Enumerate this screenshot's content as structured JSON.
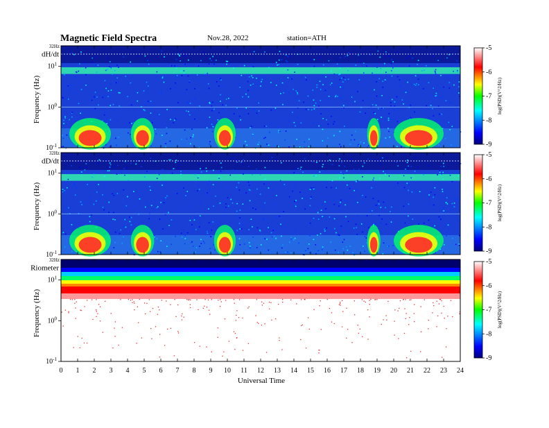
{
  "header": {
    "title": "Magnetic  Field  Spectra",
    "date": "Nov.28, 2022",
    "station": "station=ATH"
  },
  "colors": {
    "scale": [
      "#00007f",
      "#0000ff",
      "#00ffff",
      "#00ff00",
      "#ffff00",
      "#ff0000",
      "#ffffff"
    ]
  },
  "chart_data": [
    {
      "type": "heatmap",
      "panel_label": "dH/dt",
      "ylabel": "Frequency  (Hz)",
      "ytop_label": "32Hz",
      "y_ticks": [
        {
          "base": "10",
          "exp": "1",
          "value": 10
        },
        {
          "base": "10",
          "exp": "0",
          "value": 1
        },
        {
          "base": "10",
          "exp": "-1",
          "value": 0.1
        }
      ],
      "ylim": [
        0.1,
        32
      ],
      "y_scale": "log",
      "xlim": [
        0,
        24
      ],
      "colorbar": {
        "label": "log(PSD)(V^2/Hz)",
        "ticks": [
          "-5",
          "-6",
          "-7",
          "-8",
          "-9"
        ],
        "range": [
          -9,
          -5
        ]
      },
      "low_freq_activity_hours": [
        [
          0.5,
          3
        ],
        [
          4.2,
          5.6
        ],
        [
          9.2,
          10.5
        ],
        [
          18.4,
          19.2
        ],
        [
          20,
          23
        ]
      ]
    },
    {
      "type": "heatmap",
      "panel_label": "dD/dt",
      "ylabel": "Frequency  (Hz)",
      "ytop_label": "32Hz",
      "y_ticks": [
        {
          "base": "10",
          "exp": "1",
          "value": 10
        },
        {
          "base": "10",
          "exp": "0",
          "value": 1
        },
        {
          "base": "10",
          "exp": "-1",
          "value": 0.1
        }
      ],
      "ylim": [
        0.1,
        32
      ],
      "y_scale": "log",
      "xlim": [
        0,
        24
      ],
      "colorbar": {
        "label": "log(PSD)(V^2/Hz)",
        "ticks": [
          "-5",
          "-6",
          "-7",
          "-8",
          "-9"
        ],
        "range": [
          -9,
          -5
        ]
      },
      "low_freq_activity_hours": [
        [
          0.5,
          3
        ],
        [
          4.2,
          5.6
        ],
        [
          9.2,
          10.5
        ],
        [
          18.4,
          19.2
        ],
        [
          20,
          23
        ]
      ]
    },
    {
      "type": "heatmap",
      "panel_label": "Riometer",
      "ylabel": "Frequency  (Hz)",
      "ytop_label": "32Hz",
      "y_ticks": [
        {
          "base": "10",
          "exp": "1",
          "value": 10
        },
        {
          "base": "10",
          "exp": "0",
          "value": 1
        },
        {
          "base": "10",
          "exp": "-1",
          "value": 0.1
        }
      ],
      "ylim": [
        0.1,
        32
      ],
      "y_scale": "log",
      "xlim": [
        0,
        24
      ],
      "colorbar": {
        "label": "log(PSD)(V^2/Hz)",
        "ticks": [
          "-5",
          "-6",
          "-7",
          "-8",
          "-9"
        ],
        "range": [
          -9,
          -5
        ]
      }
    }
  ],
  "x_axis": {
    "label": "Universal  Time",
    "ticks": [
      "0",
      "1",
      "2",
      "3",
      "4",
      "5",
      "6",
      "7",
      "8",
      "9",
      "10",
      "11",
      "12",
      "13",
      "14",
      "15",
      "16",
      "17",
      "18",
      "19",
      "20",
      "21",
      "22",
      "23",
      "24"
    ]
  }
}
